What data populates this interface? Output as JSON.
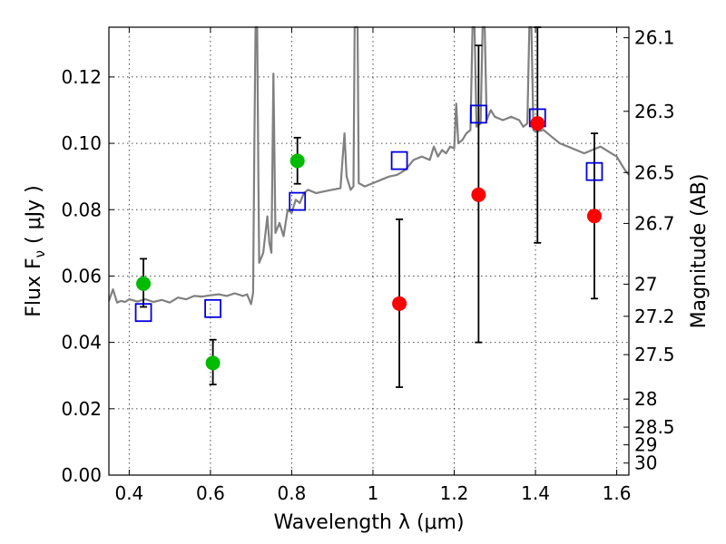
{
  "chart_data": {
    "type": "scatter",
    "xlabel": "Wavelength  λ (μm)",
    "ylabel": "Flux  F",
    "ylabel_sub": "ν",
    "ylabel_unit": "  ( μJy )",
    "y2label": "Magnitude (AB)",
    "xlim": [
      0.35,
      1.63
    ],
    "ylim": [
      0.0,
      0.135
    ],
    "grid": true,
    "x_ticks": [
      0.4,
      0.6,
      0.8,
      1.0,
      1.2,
      1.4,
      1.6
    ],
    "x_tick_labels": [
      "0.4",
      "0.6",
      "0.8",
      "1",
      "1.2",
      "1.4",
      "1.6"
    ],
    "y_ticks": [
      0.0,
      0.02,
      0.04,
      0.06,
      0.08,
      0.1,
      0.12
    ],
    "y_tick_labels": [
      "0.00",
      "0.02",
      "0.04",
      "0.06",
      "0.08",
      "0.10",
      "0.12"
    ],
    "y2_ticks": [
      {
        "label": "26.1",
        "value": 26.1
      },
      {
        "label": "26.3",
        "value": 26.3
      },
      {
        "label": "26.5",
        "value": 26.5
      },
      {
        "label": "26.7",
        "value": 26.7
      },
      {
        "label": "27",
        "value": 27.0
      },
      {
        "label": "27.2",
        "value": 27.2
      },
      {
        "label": "27.5",
        "value": 27.5
      },
      {
        "label": "28",
        "value": 28.0
      },
      {
        "label": "28.5",
        "value": 28.5
      },
      {
        "label": "29",
        "value": 29.0
      },
      {
        "label": "30",
        "value": 30.0
      }
    ],
    "colors": {
      "spectrum": "#808080",
      "green_points": "#00bb00",
      "red_points": "#ff0000",
      "model_squares": "#0000dd",
      "errorbars": "#000000"
    },
    "series": [
      {
        "marker": "circle",
        "color": "#00bb00",
        "points": [
          {
            "x": 0.435,
            "y": 0.0577,
            "err_lo": 0.0507,
            "err_hi": 0.0652
          },
          {
            "x": 0.606,
            "y": 0.0338,
            "err_lo": 0.0273,
            "err_hi": 0.0408
          },
          {
            "x": 0.814,
            "y": 0.0947,
            "err_lo": 0.0878,
            "err_hi": 0.1017
          }
        ]
      },
      {
        "marker": "circle",
        "color": "#ff0000",
        "points": [
          {
            "x": 1.065,
            "y": 0.0517,
            "err_lo": 0.0265,
            "err_hi": 0.0771
          },
          {
            "x": 1.26,
            "y": 0.0845,
            "err_lo": 0.04,
            "err_hi": 0.1295
          },
          {
            "x": 1.405,
            "y": 0.106,
            "err_lo": 0.07,
            "err_hi": 0.135
          },
          {
            "x": 1.545,
            "y": 0.0781,
            "err_lo": 0.0532,
            "err_hi": 0.103
          }
        ]
      },
      {
        "marker": "square",
        "color": "#0000dd",
        "points": [
          {
            "x": 0.435,
            "y": 0.049
          },
          {
            "x": 0.606,
            "y": 0.0502
          },
          {
            "x": 0.814,
            "y": 0.0825
          },
          {
            "x": 1.065,
            "y": 0.0948
          },
          {
            "x": 1.26,
            "y": 0.1088
          },
          {
            "x": 1.405,
            "y": 0.1077
          },
          {
            "x": 1.545,
            "y": 0.0915
          }
        ]
      },
      {
        "marker": "line",
        "color": "#808080",
        "points": [
          [
            0.35,
            0.0525
          ],
          [
            0.36,
            0.056
          ],
          [
            0.37,
            0.052
          ],
          [
            0.38,
            0.0525
          ],
          [
            0.39,
            0.0522
          ],
          [
            0.4,
            0.053
          ],
          [
            0.42,
            0.0523
          ],
          [
            0.44,
            0.053
          ],
          [
            0.46,
            0.0522
          ],
          [
            0.48,
            0.0528
          ],
          [
            0.5,
            0.052
          ],
          [
            0.52,
            0.0535
          ],
          [
            0.54,
            0.053
          ],
          [
            0.56,
            0.054
          ],
          [
            0.58,
            0.0538
          ],
          [
            0.6,
            0.0542
          ],
          [
            0.62,
            0.0545
          ],
          [
            0.64,
            0.054
          ],
          [
            0.66,
            0.0548
          ],
          [
            0.68,
            0.054
          ],
          [
            0.69,
            0.0545
          ],
          [
            0.7,
            0.0515
          ],
          [
            0.705,
            0.055
          ],
          [
            0.708,
            0.1
          ],
          [
            0.711,
            0.135
          ],
          [
            0.715,
            0.135
          ],
          [
            0.718,
            0.09
          ],
          [
            0.72,
            0.064
          ],
          [
            0.73,
            0.067
          ],
          [
            0.74,
            0.078
          ],
          [
            0.745,
            0.07
          ],
          [
            0.75,
            0.067
          ],
          [
            0.755,
            0.121
          ],
          [
            0.76,
            0.073
          ],
          [
            0.77,
            0.076
          ],
          [
            0.78,
            0.072
          ],
          [
            0.79,
            0.08
          ],
          [
            0.8,
            0.079
          ],
          [
            0.81,
            0.083
          ],
          [
            0.82,
            0.082
          ],
          [
            0.83,
            0.085
          ],
          [
            0.84,
            0.086
          ],
          [
            0.86,
            0.085
          ],
          [
            0.88,
            0.0855
          ],
          [
            0.9,
            0.086
          ],
          [
            0.92,
            0.0865
          ],
          [
            0.925,
            0.095
          ],
          [
            0.93,
            0.103
          ],
          [
            0.935,
            0.09
          ],
          [
            0.945,
            0.086
          ],
          [
            0.952,
            0.087
          ],
          [
            0.955,
            0.135
          ],
          [
            0.962,
            0.135
          ],
          [
            0.965,
            0.088
          ],
          [
            0.98,
            0.087
          ],
          [
            1.0,
            0.088
          ],
          [
            1.02,
            0.089
          ],
          [
            1.04,
            0.09
          ],
          [
            1.06,
            0.0905
          ],
          [
            1.08,
            0.092
          ],
          [
            1.1,
            0.095
          ],
          [
            1.12,
            0.096
          ],
          [
            1.14,
            0.095
          ],
          [
            1.15,
            0.099
          ],
          [
            1.16,
            0.096
          ],
          [
            1.17,
            0.098
          ],
          [
            1.18,
            0.097
          ],
          [
            1.19,
            0.099
          ],
          [
            1.2,
            0.0985
          ],
          [
            1.205,
            0.112
          ],
          [
            1.21,
            0.1
          ],
          [
            1.22,
            0.101
          ],
          [
            1.23,
            0.103
          ],
          [
            1.24,
            0.104
          ],
          [
            1.245,
            0.135
          ],
          [
            1.25,
            0.135
          ],
          [
            1.255,
            0.105
          ],
          [
            1.265,
            0.106
          ],
          [
            1.27,
            0.135
          ],
          [
            1.275,
            0.135
          ],
          [
            1.28,
            0.107
          ],
          [
            1.29,
            0.11
          ],
          [
            1.3,
            0.108
          ],
          [
            1.32,
            0.107
          ],
          [
            1.34,
            0.108
          ],
          [
            1.36,
            0.107
          ],
          [
            1.37,
            0.105
          ],
          [
            1.38,
            0.106
          ],
          [
            1.385,
            0.135
          ],
          [
            1.39,
            0.135
          ],
          [
            1.395,
            0.104
          ],
          [
            1.4,
            0.1035
          ],
          [
            1.42,
            0.104
          ],
          [
            1.44,
            0.102
          ],
          [
            1.46,
            0.1
          ],
          [
            1.48,
            0.099
          ],
          [
            1.5,
            0.098
          ],
          [
            1.52,
            0.097
          ],
          [
            1.54,
            0.098
          ],
          [
            1.56,
            0.099
          ],
          [
            1.58,
            0.0975
          ],
          [
            1.6,
            0.096
          ],
          [
            1.61,
            0.094
          ],
          [
            1.62,
            0.092
          ],
          [
            1.63,
            0.0905
          ]
        ]
      }
    ]
  }
}
